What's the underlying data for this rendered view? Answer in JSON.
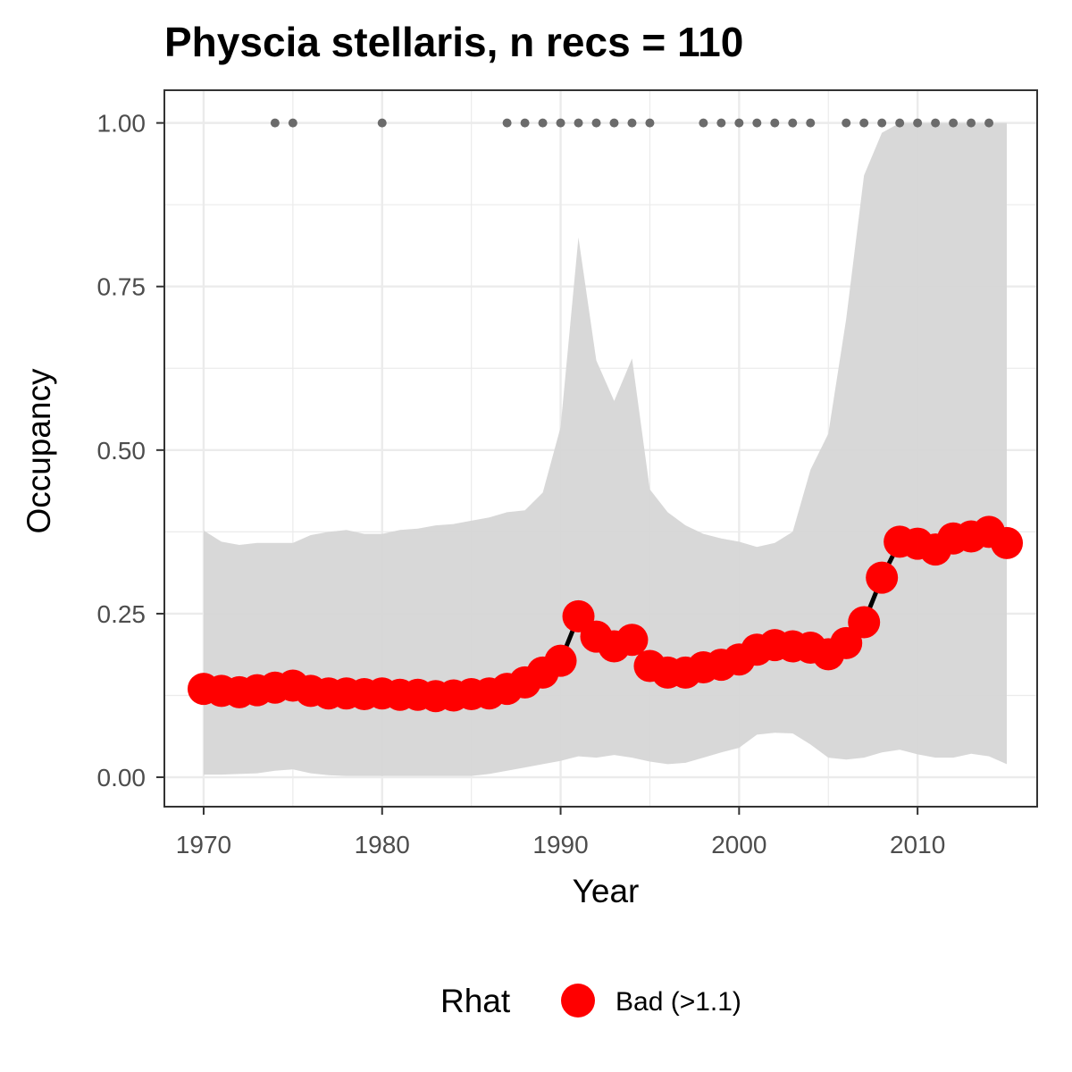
{
  "chart_data": {
    "type": "line",
    "title": "Physcia stellaris, n recs = 110",
    "xlabel": "Year",
    "ylabel": "Occupancy",
    "xlim": [
      1967.8,
      2016.7
    ],
    "ylim": [
      -0.045,
      1.05
    ],
    "xticks": [
      1970,
      1980,
      1990,
      2000,
      2010
    ],
    "xtick_labels": [
      "1970",
      "1980",
      "1990",
      "2000",
      "2010"
    ],
    "yticks": [
      0,
      0.25,
      0.5,
      0.75,
      1.0
    ],
    "ytick_labels": [
      "0.00",
      "0.25",
      "0.50",
      "0.75",
      "1.00"
    ],
    "grid": true,
    "years": [
      1970,
      1971,
      1972,
      1973,
      1974,
      1975,
      1976,
      1977,
      1978,
      1979,
      1980,
      1981,
      1982,
      1983,
      1984,
      1985,
      1986,
      1987,
      1988,
      1989,
      1990,
      1991,
      1992,
      1993,
      1994,
      1995,
      1996,
      1997,
      1998,
      1999,
      2000,
      2001,
      2002,
      2003,
      2004,
      2005,
      2006,
      2007,
      2008,
      2009,
      2010,
      2011,
      2012,
      2013,
      2014,
      2015
    ],
    "series": [
      {
        "type": "line",
        "values": [
          0.135,
          0.132,
          0.13,
          0.133,
          0.137,
          0.14,
          0.132,
          0.128,
          0.128,
          0.127,
          0.128,
          0.126,
          0.126,
          0.124,
          0.125,
          0.127,
          0.128,
          0.135,
          0.145,
          0.16,
          0.178,
          0.246,
          0.215,
          0.2,
          0.21,
          0.17,
          0.16,
          0.16,
          0.168,
          0.172,
          0.18,
          0.195,
          0.202,
          0.2,
          0.198,
          0.188,
          0.205,
          0.237,
          0.305,
          0.36,
          0.357,
          0.348,
          0.365,
          0.368,
          0.375,
          0.358
        ]
      }
    ],
    "ribbon": {
      "upper": [
        0.377,
        0.36,
        0.355,
        0.358,
        0.358,
        0.358,
        0.37,
        0.375,
        0.378,
        0.372,
        0.372,
        0.378,
        0.38,
        0.385,
        0.387,
        0.392,
        0.397,
        0.405,
        0.408,
        0.435,
        0.535,
        0.825,
        0.637,
        0.575,
        0.64,
        0.44,
        0.405,
        0.385,
        0.372,
        0.365,
        0.36,
        0.352,
        0.358,
        0.375,
        0.47,
        0.525,
        0.7,
        0.92,
        0.985,
        1.0,
        1.0,
        1.0,
        1.0,
        1.0,
        1.0,
        1.0
      ],
      "lower": [
        0.004,
        0.004,
        0.005,
        0.006,
        0.01,
        0.012,
        0.006,
        0.003,
        0.002,
        0.002,
        0.002,
        0.002,
        0.002,
        0.002,
        0.002,
        0.002,
        0.005,
        0.01,
        0.015,
        0.02,
        0.025,
        0.032,
        0.03,
        0.034,
        0.03,
        0.024,
        0.02,
        0.022,
        0.03,
        0.038,
        0.045,
        0.065,
        0.068,
        0.067,
        0.05,
        0.03,
        0.027,
        0.03,
        0.038,
        0.042,
        0.035,
        0.03,
        0.03,
        0.036,
        0.032,
        0.02
      ]
    },
    "record_years": [
      1974,
      1975,
      1980,
      1987,
      1988,
      1989,
      1990,
      1991,
      1992,
      1993,
      1994,
      1995,
      1998,
      1999,
      2000,
      2001,
      2002,
      2003,
      2004,
      2006,
      2007,
      2008,
      2009,
      2010,
      2011,
      2012,
      2013,
      2014
    ],
    "record_y": 1.0,
    "colors": {
      "ribbon": "#d6d6d6",
      "line": "#000000",
      "points": "#ff0000",
      "records": "#6b6b6b",
      "grid_major": "#ebebeb",
      "panel_border": "#333333"
    },
    "legend": {
      "position": "bottom",
      "title": "Rhat",
      "items": [
        {
          "label": "Bad (>1.1)",
          "color": "#ff0000"
        }
      ]
    }
  }
}
